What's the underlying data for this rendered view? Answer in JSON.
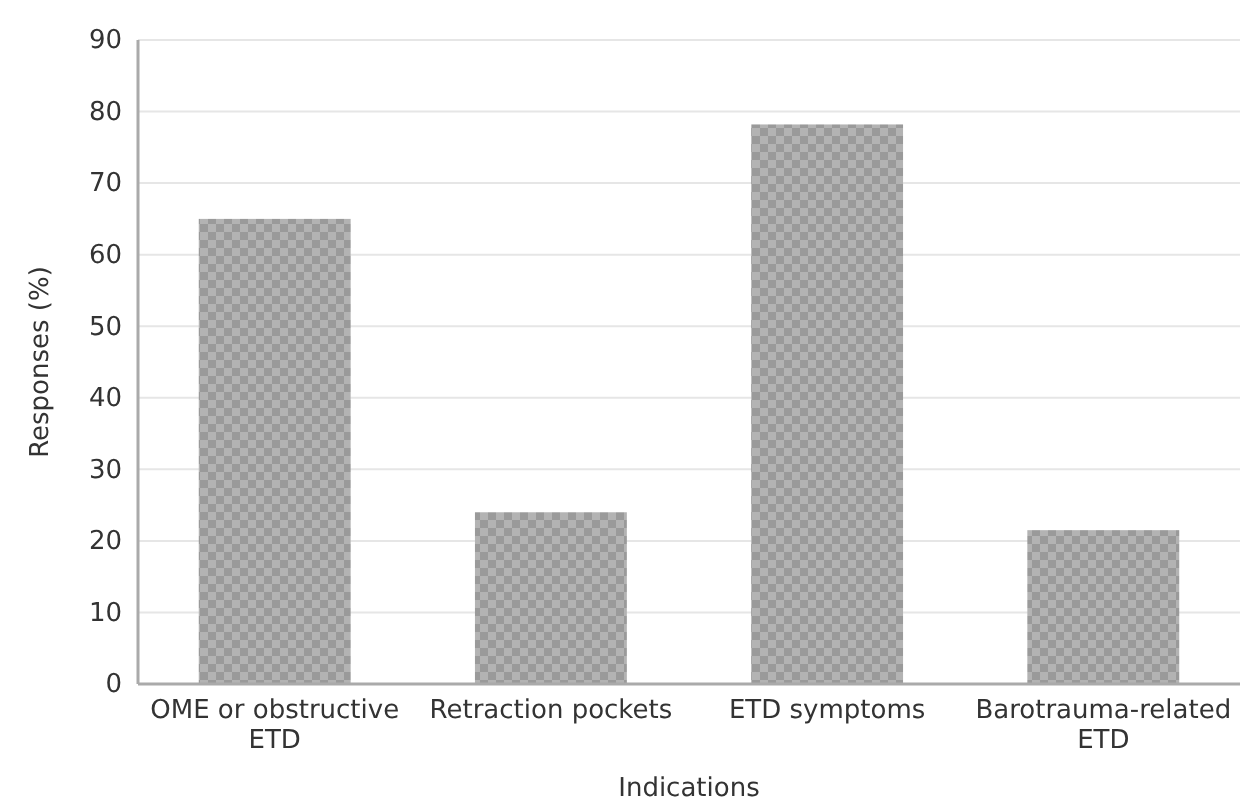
{
  "chart_data": {
    "type": "bar",
    "xlabel": "Indications",
    "ylabel": "Responses (%)",
    "categories": [
      "OME or obstructive ETD",
      "Retraction pockets",
      "ETD symptoms",
      "Barotrauma-related ETD"
    ],
    "values": [
      65,
      24,
      78.2,
      21.5
    ],
    "color": "#9a9a9a",
    "ylim": [
      0,
      90
    ],
    "yticks": [
      0,
      10,
      20,
      30,
      40,
      50,
      60,
      70,
      80,
      90
    ],
    "grid": "y"
  }
}
